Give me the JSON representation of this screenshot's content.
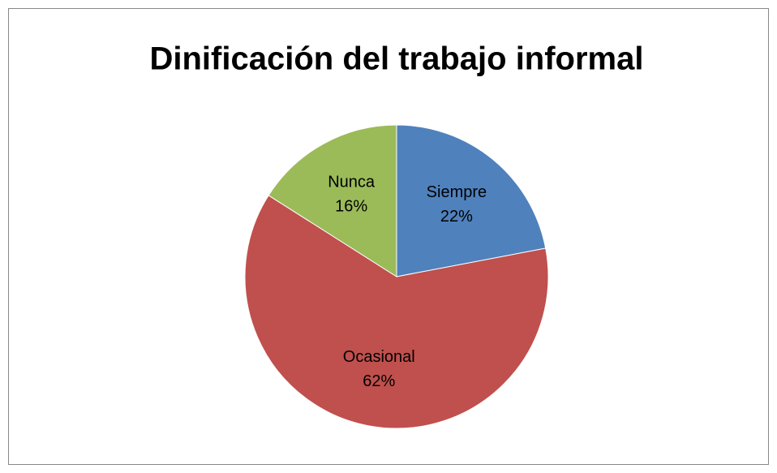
{
  "chart_data": {
    "type": "pie",
    "title": "Dinificación del trabajo informal",
    "categories": [
      "Siempre",
      "Ocasional",
      "Nunca"
    ],
    "values": [
      22,
      62,
      16
    ],
    "value_labels": [
      "22%",
      "62%",
      "16%"
    ],
    "colors": [
      "#4f81bd",
      "#c0504d",
      "#9bbb59"
    ]
  }
}
